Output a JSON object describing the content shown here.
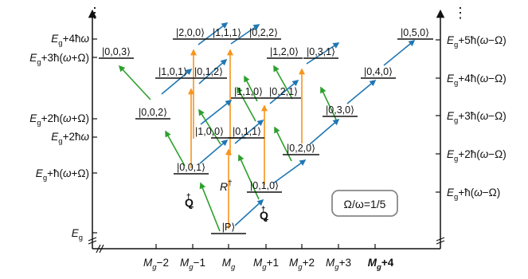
{
  "diagram": {
    "colors": {
      "axis": "#111111",
      "level": "#111111",
      "arrow_R": "#f7941d",
      "arrow_Q_minus": "#2ca02c",
      "arrow_Q_plus": "#1f77b4",
      "note_border": "#888888"
    },
    "left_axis_labels": [
      "E_g+4ħω",
      "E_g+3ħ(ω+Ω)",
      "E_g+2ħ(ω+Ω)",
      "E_g+2ħω",
      "E_g+ħ(ω+Ω)",
      "E_g"
    ],
    "right_axis_labels": [
      "E_g+5ħ(ω−Ω)",
      "E_g+4ħ(ω−Ω)",
      "E_g+3ħ(ω−Ω)",
      "E_g+2ħ(ω−Ω)",
      "E_g+ħ(ω−Ω)"
    ],
    "x_axis_labels": [
      "M_g−2",
      "M_g−1",
      "M_g",
      "M_g+1",
      "M_g+2",
      "M_g+3",
      "M_g+4"
    ],
    "levels": {
      "P": "|P⟩",
      "k001": "|0,0,1⟩",
      "k010": "|0,1,0⟩",
      "k100": "|1,0,0⟩",
      "k011": "|0,1,1⟩",
      "k002": "|0,0,2⟩",
      "k020": "|0,2,0⟩",
      "k110": "|1,1,0⟩",
      "k021": "|0,2,1⟩",
      "k101": "|1,0,1⟩",
      "k012": "|0,1,2⟩",
      "k030": "|0,3,0⟩",
      "k003": "|0,0,3⟩",
      "k120": "|1,2,0⟩",
      "k031": "|0,3,1⟩",
      "k040": "|0,4,0⟩",
      "k200": "|2,0,0⟩",
      "k111": "|1,1,1⟩",
      "k022": "|0,2,2⟩",
      "k050": "|0,5,0⟩"
    },
    "operators": {
      "Q_minus": "Q†−",
      "R": "R†",
      "Q_plus": "Q†+"
    },
    "note": "Ω/ω=1/5",
    "ellipsis": "⋮"
  }
}
